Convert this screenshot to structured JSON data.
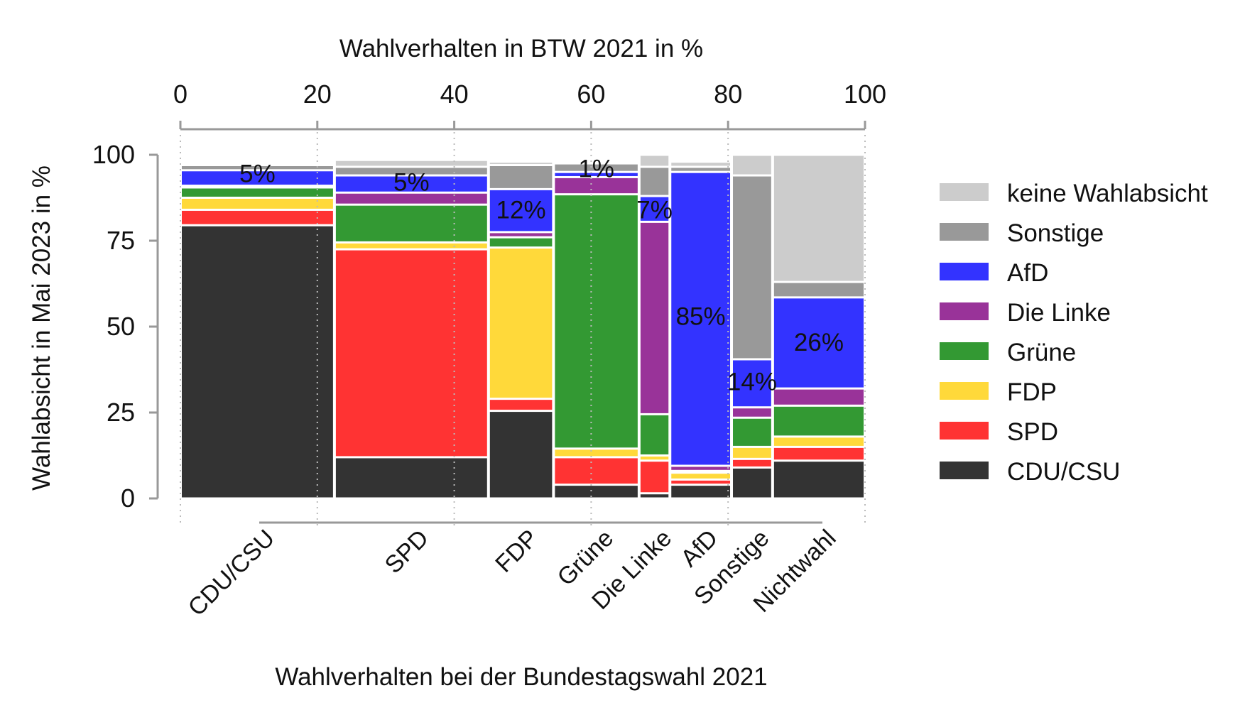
{
  "chart_data": {
    "type": "mosaic",
    "top_axis_title": "Wahlverhalten in BTW 2021 in %",
    "xlabel": "Wahlverhalten bei der Bundestagswahl 2021",
    "ylabel": "Wahlabsicht in Mai 2023 in %",
    "xlim": [
      0,
      100
    ],
    "ylim": [
      0,
      100
    ],
    "x_ticks": [
      0,
      20,
      40,
      60,
      80,
      100
    ],
    "y_ticks": [
      0,
      25,
      50,
      75,
      100
    ],
    "grid": false,
    "legend_position": "right",
    "colors": {
      "CDU/CSU": "#333333",
      "SPD": "#ff3333",
      "FDP": "#ffd93a",
      "Grüne": "#339933",
      "Die Linke": "#993399",
      "AfD": "#3333ff",
      "Sonstige": "#999999",
      "keine Wahlabsicht": "#cccccc"
    },
    "legend": [
      "keine Wahlabsicht",
      "Sonstige",
      "AfD",
      "Die Linke",
      "Grüne",
      "FDP",
      "SPD",
      "CDU/CSU"
    ],
    "stack_order": [
      "CDU/CSU",
      "SPD",
      "FDP",
      "Grüne",
      "Die Linke",
      "AfD",
      "Sonstige",
      "keine Wahlabsicht"
    ],
    "columns": [
      {
        "category": "CDU/CSU",
        "width": 22.5,
        "shares": {
          "CDU/CSU": 79.5,
          "SPD": 4.5,
          "FDP": 3.5,
          "Grüne": 3.0,
          "Die Linke": 0.5,
          "AfD": 4.5,
          "Sonstige": 1.5,
          "keine Wahlabsicht": 0.5
        },
        "label": "5%",
        "label_y": 94.5
      },
      {
        "category": "SPD",
        "width": 22.5,
        "shares": {
          "CDU/CSU": 12.0,
          "SPD": 60.5,
          "FDP": 2.0,
          "Grüne": 11.0,
          "Die Linke": 3.5,
          "AfD": 5.0,
          "Sonstige": 2.5,
          "keine Wahlabsicht": 2.0
        },
        "label": "5%",
        "label_y": 92
      },
      {
        "category": "FDP",
        "width": 9.5,
        "shares": {
          "CDU/CSU": 25.5,
          "SPD": 3.5,
          "FDP": 44.0,
          "Grüne": 3.0,
          "Die Linke": 1.5,
          "AfD": 12.5,
          "Sonstige": 7.0,
          "keine Wahlabsicht": 1.0
        },
        "label": "12%",
        "label_y": 84
      },
      {
        "category": "Grüne",
        "width": 12.5,
        "shares": {
          "CDU/CSU": 4.0,
          "SPD": 8.0,
          "FDP": 2.5,
          "Grüne": 74.0,
          "Die Linke": 5.0,
          "AfD": 1.5,
          "Sonstige": 2.5,
          "keine Wahlabsicht": 0.5
        },
        "label": "1%",
        "label_y": 96
      },
      {
        "category": "Die Linke",
        "width": 4.5,
        "shares": {
          "CDU/CSU": 1.5,
          "SPD": 9.5,
          "FDP": 1.5,
          "Grüne": 12.0,
          "Die Linke": 56.0,
          "AfD": 7.5,
          "Sonstige": 8.5,
          "keine Wahlabsicht": 3.5
        },
        "label": "7%",
        "label_y": 84
      },
      {
        "category": "AfD",
        "width": 9.0,
        "shares": {
          "CDU/CSU": 4.0,
          "SPD": 1.5,
          "FDP": 2.0,
          "Grüne": 0.5,
          "Die Linke": 1.5,
          "AfD": 85.5,
          "Sonstige": 1.5,
          "keine Wahlabsicht": 1.5
        },
        "label": "85%",
        "label_y": 53
      },
      {
        "category": "Sonstige",
        "width": 6.0,
        "shares": {
          "CDU/CSU": 9.0,
          "SPD": 2.5,
          "FDP": 3.5,
          "Grüne": 8.5,
          "Die Linke": 3.0,
          "AfD": 14.0,
          "Sonstige": 53.5,
          "keine Wahlabsicht": 6.0
        },
        "label": "14%",
        "label_y": 34
      },
      {
        "category": "Nichtwahl",
        "width": 13.5,
        "shares": {
          "CDU/CSU": 11.0,
          "SPD": 4.0,
          "FDP": 3.0,
          "Grüne": 9.0,
          "Die Linke": 5.0,
          "AfD": 26.5,
          "Sonstige": 4.5,
          "keine Wahlabsicht": 37.0
        },
        "label": "26%",
        "label_y": 45.5
      }
    ]
  }
}
